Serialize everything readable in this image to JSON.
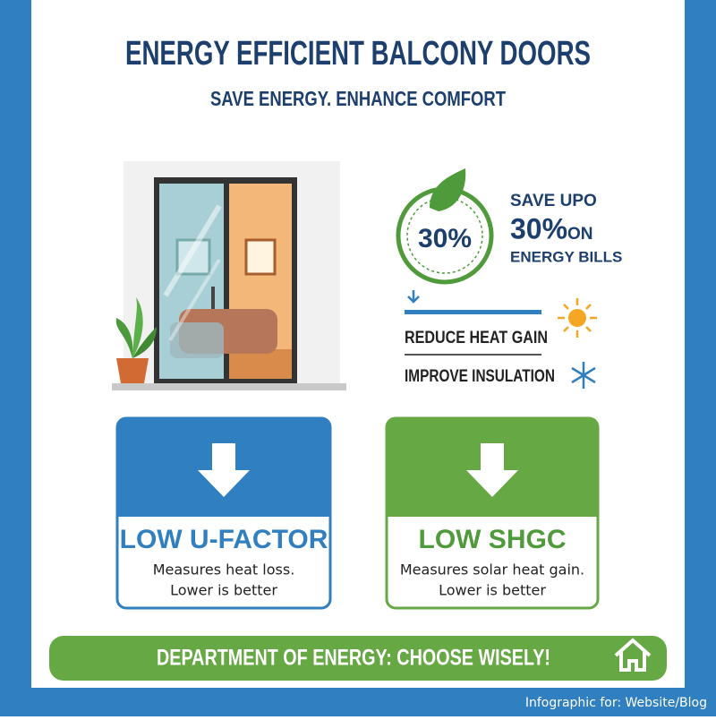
{
  "header": {
    "title": "ENERGY EFFICIENT BALCONY DOORS",
    "subtitle": "SAVE ENERGY. ENHANCE COMFORT"
  },
  "savings": {
    "badge": "30%",
    "line1": "SAVE UPO",
    "line2_big": "30%",
    "line2_small": "ON",
    "line3": "ENERGY BILLS"
  },
  "benefits": [
    "REDUCE HEAT GAIN",
    "IMPROVE INSULATION"
  ],
  "cards": [
    {
      "title": "LOW U-FACTOR",
      "lines": [
        "Measures heat loss.",
        "Lower is better"
      ]
    },
    {
      "title": "LOW SHGC",
      "lines": [
        "Measures solar heat gain.",
        "Lower is better"
      ]
    }
  ],
  "footer": {
    "banner": "DEPARTMENT OF ENERGY: CHOOSE WISELY!",
    "caption": "Infographic for: Website/Blog"
  }
}
